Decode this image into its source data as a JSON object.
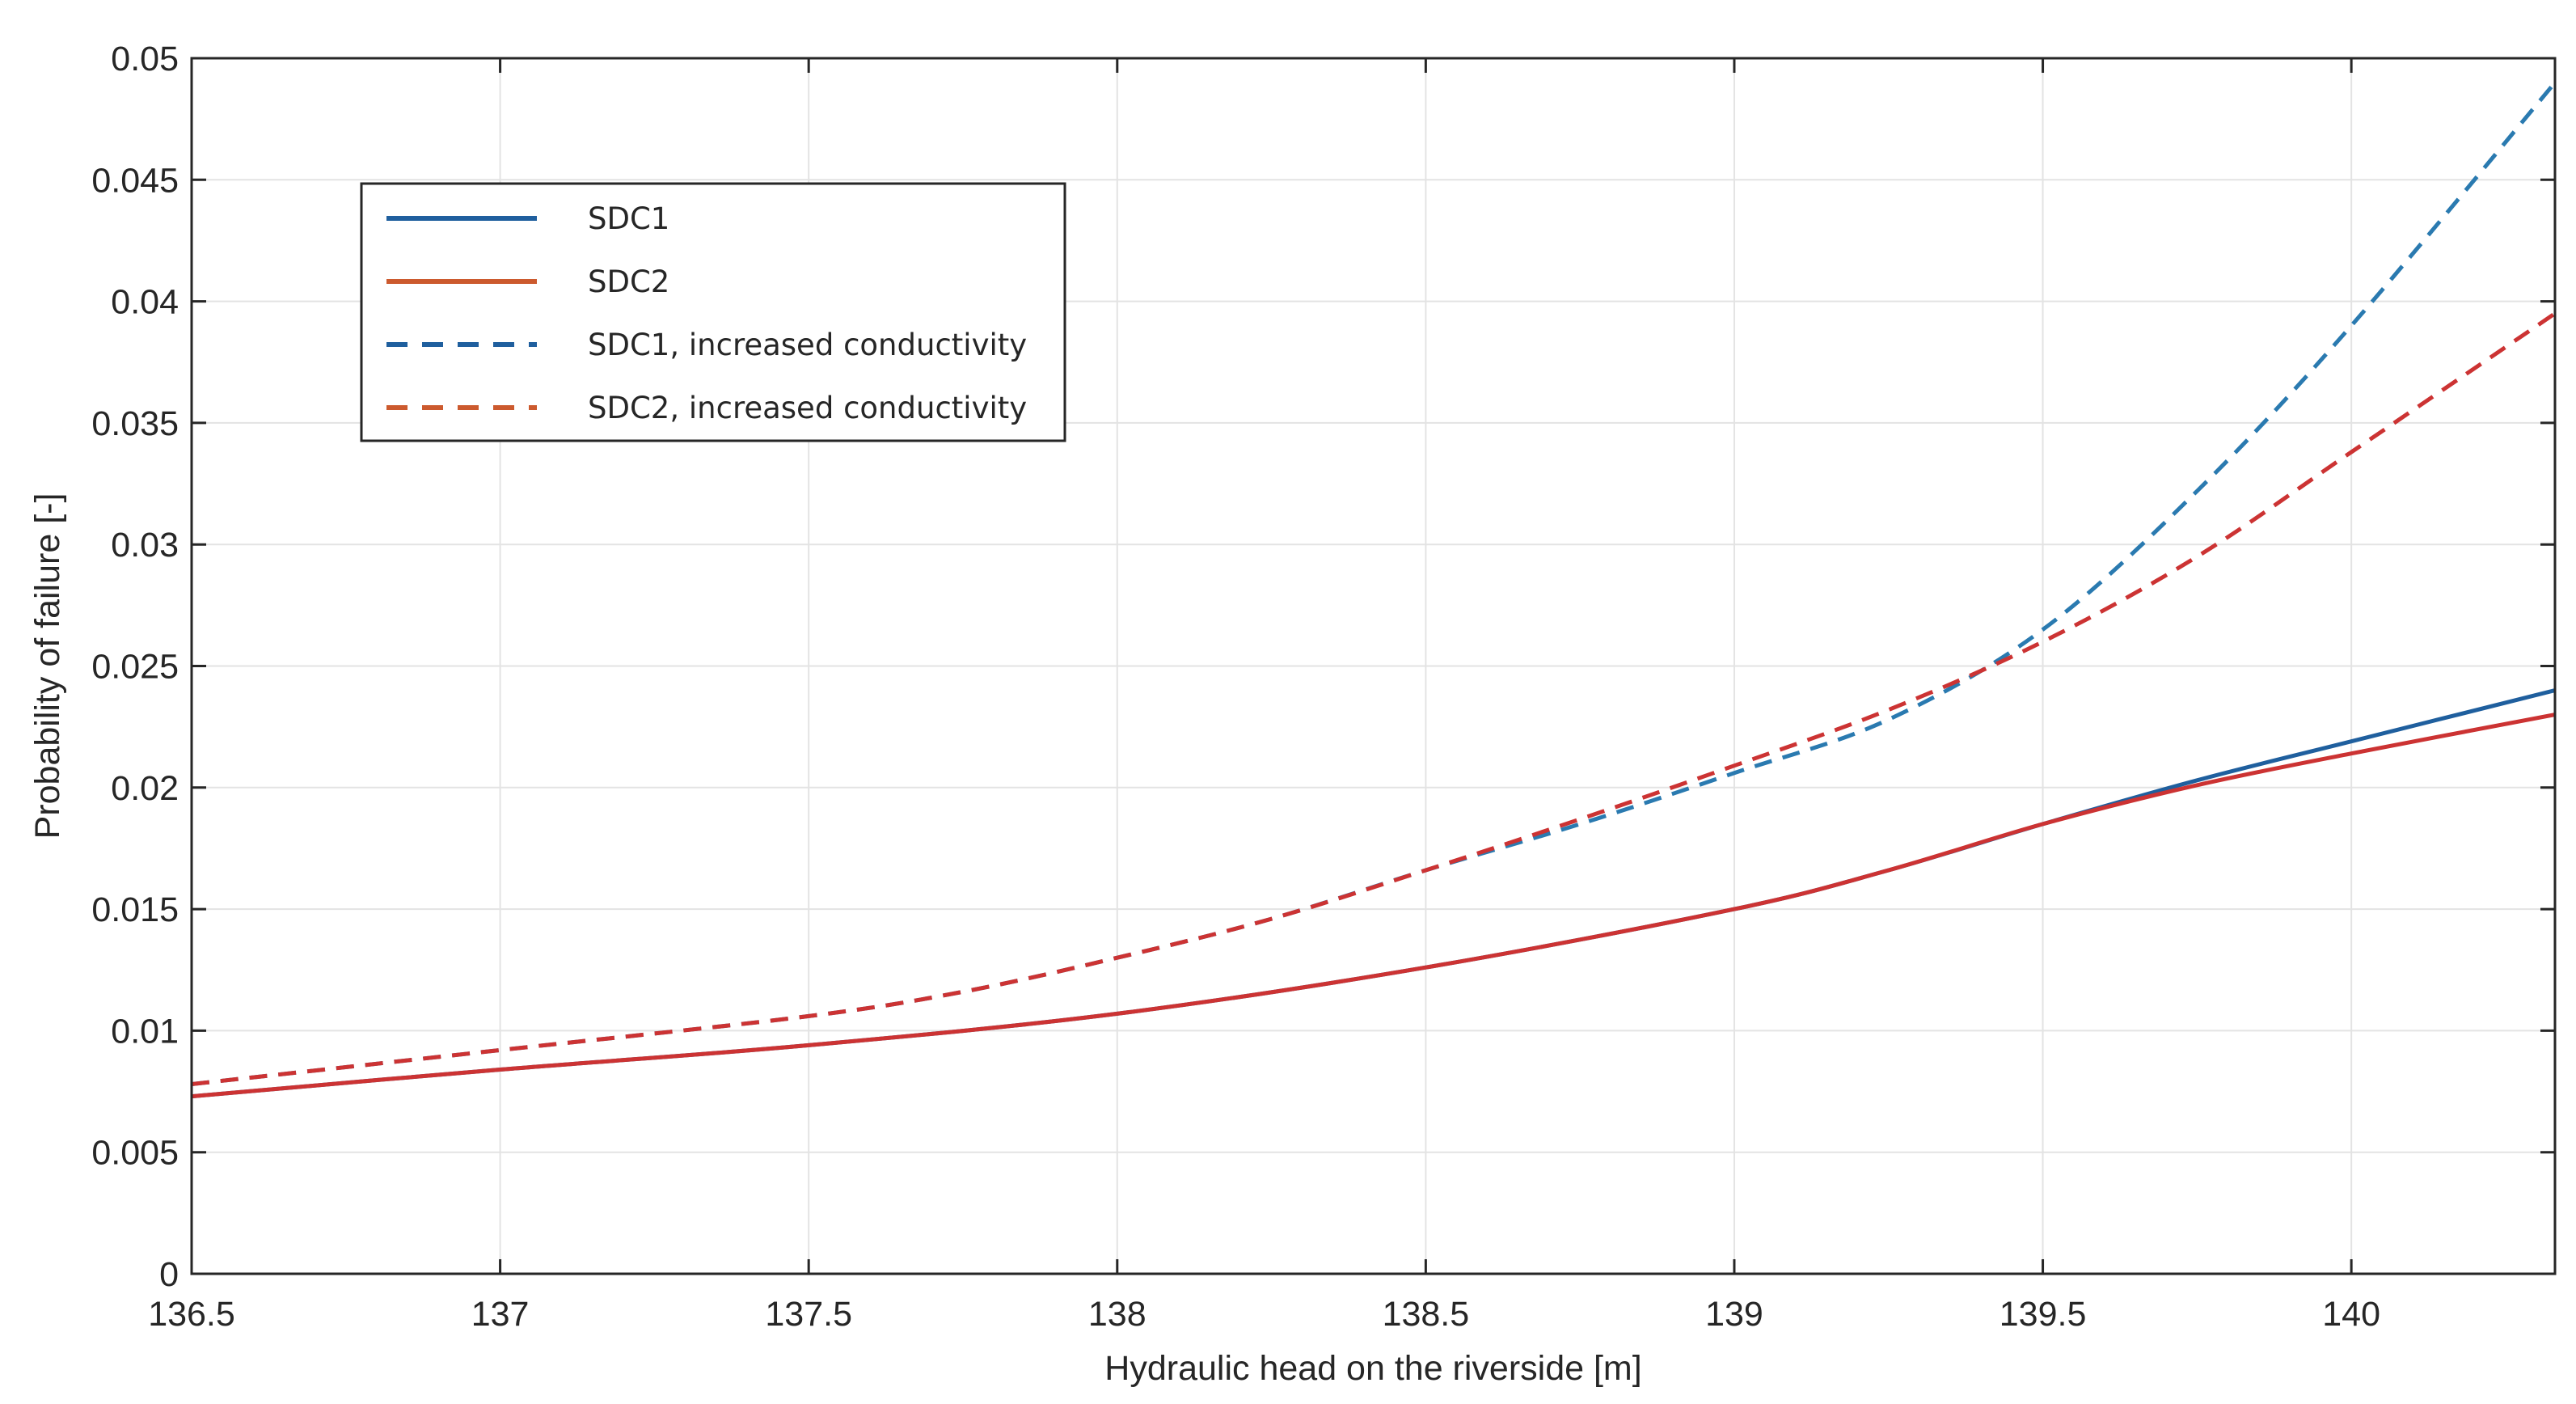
{
  "chart_data": {
    "type": "line",
    "title": "",
    "xlabel": "Hydraulic head on the riverside [m]",
    "ylabel": "Probability of failure [-]",
    "xlim": [
      136.5,
      140.33
    ],
    "ylim": [
      0,
      0.05
    ],
    "x_ticks": [
      136.5,
      137,
      137.5,
      138,
      138.5,
      139,
      139.5,
      140
    ],
    "x_tick_labels": [
      "136.5",
      "137",
      "137.5",
      "138",
      "138.5",
      "139",
      "139.5",
      "140"
    ],
    "y_ticks": [
      0,
      0.005,
      0.01,
      0.015,
      0.02,
      0.025,
      0.03,
      0.035,
      0.04,
      0.045,
      0.05
    ],
    "y_tick_labels": [
      "0",
      "0.005",
      "0.01",
      "0.015",
      "0.02",
      "0.025",
      "0.03",
      "0.035",
      "0.04",
      "0.045",
      "0.05"
    ],
    "grid": true,
    "legend_position": "top-left",
    "series": [
      {
        "name": "SDC1",
        "color": "#1f5f9e",
        "dash": "solid",
        "x": [
          136.5,
          137,
          137.5,
          138,
          138.5,
          139,
          139.25,
          139.5,
          139.75,
          140,
          140.33
        ],
        "y": [
          0.0073,
          0.0084,
          0.0094,
          0.0107,
          0.0126,
          0.015,
          0.0166,
          0.0185,
          0.0203,
          0.0219,
          0.024
        ]
      },
      {
        "name": "SDC2",
        "color": "#cc3333",
        "dash": "solid",
        "x": [
          136.5,
          137,
          137.5,
          138,
          138.5,
          139,
          139.25,
          139.5,
          139.75,
          140,
          140.33
        ],
        "y": [
          0.0073,
          0.0084,
          0.0094,
          0.0107,
          0.0126,
          0.015,
          0.0166,
          0.0185,
          0.0201,
          0.0214,
          0.023
        ]
      },
      {
        "name": "SDC1, increased conductivity",
        "color": "#2a7ab0",
        "dash": "dashed",
        "x": [
          136.5,
          137,
          137.5,
          137.75,
          138,
          138.25,
          138.5,
          138.75,
          139,
          139.25,
          139.5,
          139.75,
          140,
          140.33
        ],
        "y": [
          0.0078,
          0.0092,
          0.0106,
          0.0116,
          0.013,
          0.0146,
          0.0166,
          0.0185,
          0.0206,
          0.0228,
          0.0265,
          0.0322,
          0.039,
          0.049
        ]
      },
      {
        "name": "SDC2, increased conductivity",
        "color": "#cc3333",
        "dash": "dashed",
        "x": [
          136.5,
          137,
          137.5,
          137.75,
          138,
          138.25,
          138.5,
          138.75,
          139,
          139.25,
          139.5,
          139.75,
          140,
          140.33
        ],
        "y": [
          0.0078,
          0.0092,
          0.0106,
          0.0116,
          0.013,
          0.0146,
          0.0166,
          0.0187,
          0.0209,
          0.0232,
          0.026,
          0.0295,
          0.0338,
          0.0395
        ]
      }
    ],
    "legend_entries": [
      {
        "label": "SDC1",
        "color": "#1f5f9e",
        "dash": "solid"
      },
      {
        "label": "SDC2",
        "color": "#cc5a2e",
        "dash": "solid"
      },
      {
        "label": "SDC1, increased conductivity",
        "color": "#1f5f9e",
        "dash": "dashed"
      },
      {
        "label": "SDC2, increased conductivity",
        "color": "#cc5a2e",
        "dash": "dashed"
      }
    ]
  }
}
